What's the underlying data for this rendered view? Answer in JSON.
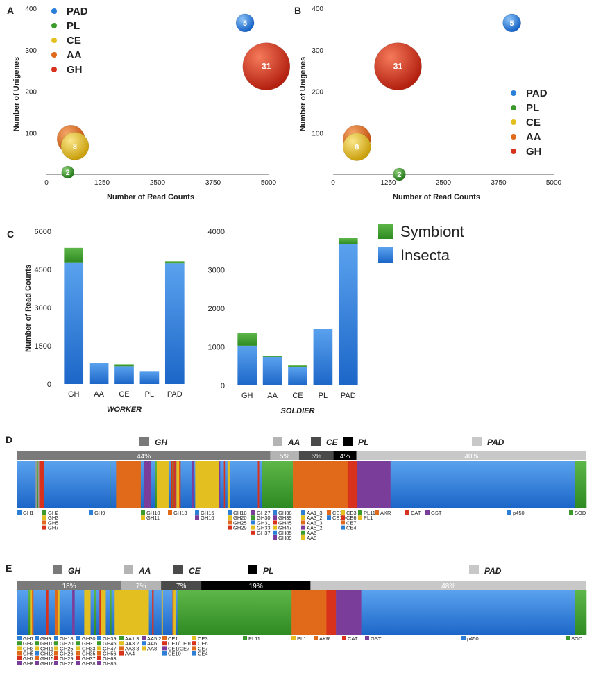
{
  "colors": {
    "PAD": "#2a7fd8",
    "PL": "#3c9a2c",
    "CE": "#e3c020",
    "AA": "#e06a1a",
    "GH": "#d9321c",
    "insecta": "#2d7fd6",
    "symbiont": "#3c9a2c",
    "gh_bar": "#7a7a7a",
    "aa_bar": "#b4b4b4",
    "ce_bar": "#4a4a4a",
    "pl_bar": "#000000",
    "pad_bar": "#c8c8c8",
    "purple": "#7a3e9a"
  },
  "chart_data": [
    {
      "panel": "A",
      "type": "scatter",
      "subtype": "bubble",
      "xlabel": "Number of Read Counts",
      "ylabel": "Number of Unigenes",
      "xlim": [
        0,
        5000
      ],
      "ylim": [
        0,
        400
      ],
      "xticks": [
        "0",
        "1250",
        "2500",
        "3750",
        "5000"
      ],
      "yticks": [
        "100",
        "200",
        "300",
        "400"
      ],
      "legend": [
        "PAD",
        "PL",
        "CE",
        "AA",
        "GH"
      ],
      "points": [
        {
          "family": "PAD",
          "x": 4470,
          "y": 365,
          "label": "5"
        },
        {
          "family": "GH",
          "x": 4950,
          "y": 260,
          "label": "31"
        },
        {
          "family": "AA",
          "x": 550,
          "y": 85,
          "label": "8"
        },
        {
          "family": "CE",
          "x": 640,
          "y": 68,
          "label": "8"
        },
        {
          "family": "PL",
          "x": 480,
          "y": 5,
          "label": "2"
        }
      ]
    },
    {
      "panel": "B",
      "type": "scatter",
      "subtype": "bubble",
      "xlabel": "Number of  Read Counts",
      "ylabel": "Number of Unigenes",
      "xlim": [
        0,
        5000
      ],
      "ylim": [
        0,
        400
      ],
      "xticks": [
        "0",
        "1250",
        "2500",
        "3750",
        "5000"
      ],
      "yticks": [
        "100",
        "200",
        "300",
        "400"
      ],
      "legend": [
        "PAD",
        "PL",
        "CE",
        "AA",
        "GH"
      ],
      "points": [
        {
          "family": "PAD",
          "x": 4050,
          "y": 365,
          "label": "5"
        },
        {
          "family": "GH",
          "x": 1470,
          "y": 260,
          "label": "31"
        },
        {
          "family": "AA",
          "x": 540,
          "y": 85,
          "label": "8"
        },
        {
          "family": "CE",
          "x": 540,
          "y": 66,
          "label": "8"
        },
        {
          "family": "PL",
          "x": 1500,
          "y": 0,
          "label": "2"
        }
      ]
    },
    {
      "panel": "C",
      "type": "bar",
      "stacked": true,
      "ylabel": "Number of Read Counts",
      "legend": [
        "Symbiont",
        "Insecta"
      ],
      "subcharts": [
        {
          "title": "WORKER",
          "categories": [
            "GH",
            "AA",
            "CE",
            "PL",
            "PAD"
          ],
          "ylim": [
            0,
            6000
          ],
          "yticks": [
            "0",
            "1500",
            "3000",
            "4500",
            "6000"
          ],
          "series": [
            {
              "name": "Insecta",
              "values": [
                4780,
                840,
                700,
                510,
                4740
              ]
            },
            {
              "name": "Symbiont",
              "values": [
                570,
                0,
                80,
                0,
                80
              ]
            }
          ]
        },
        {
          "title": "SOLDIER",
          "categories": [
            "GH",
            "AA",
            "CE",
            "PL",
            "PAD"
          ],
          "ylim": [
            0,
            4000
          ],
          "yticks": [
            "0",
            "1000",
            "2000",
            "3000",
            "4000"
          ],
          "series": [
            {
              "name": "Insecta",
              "values": [
                1030,
                740,
                470,
                1470,
                3660
              ]
            },
            {
              "name": "Symbiont",
              "values": [
                330,
                20,
                50,
                0,
                160
              ]
            }
          ]
        }
      ]
    },
    {
      "panel": "D",
      "type": "bar",
      "subtype": "composition-strip",
      "orientation": "horizontal",
      "groups": [
        {
          "name": "GH",
          "percent": "44%",
          "value": 44
        },
        {
          "name": "AA",
          "percent": "5%",
          "value": 5
        },
        {
          "name": "CE",
          "percent": "6%",
          "value": 6
        },
        {
          "name": "PL",
          "percent": "4%",
          "value": 4
        },
        {
          "name": "PAD",
          "percent": "40%",
          "value": 40
        }
      ]
    },
    {
      "panel": "E",
      "type": "bar",
      "subtype": "composition-strip",
      "orientation": "horizontal",
      "groups": [
        {
          "name": "GH",
          "percent": "18%",
          "value": 18
        },
        {
          "name": "AA",
          "percent": "7%",
          "value": 7
        },
        {
          "name": "CE",
          "percent": "7%",
          "value": 7
        },
        {
          "name": "PL",
          "percent": "19%",
          "value": 19
        },
        {
          "name": "PAD",
          "percent": "48%",
          "value": 48
        }
      ]
    }
  ],
  "panelD": {
    "segments": [
      [
        "insecta",
        6.5
      ],
      [
        "GH3",
        0.5
      ],
      [
        "symbiont",
        0.4
      ],
      [
        "GH5",
        0.4
      ],
      [
        "GH",
        1.6
      ],
      [
        "insecta",
        23.5
      ],
      [
        "symbiont",
        0.3
      ],
      [
        "insecta",
        2.0
      ],
      [
        "AA",
        8.8
      ],
      [
        "insecta",
        1.0
      ],
      [
        "purple",
        2.5
      ],
      [
        "insecta",
        1.6
      ],
      [
        "symbiont",
        0.6
      ],
      [
        "CE",
        4.2
      ],
      [
        "insecta",
        0.8
      ],
      [
        "GH",
        0.6
      ],
      [
        "symbiont",
        0.4
      ],
      [
        "GH",
        0.6
      ],
      [
        "purple",
        0.4
      ],
      [
        "CE",
        1.0
      ],
      [
        "GH",
        0.5
      ],
      [
        "insecta",
        4.0
      ],
      [
        "purple",
        0.6
      ],
      [
        "insecta",
        0.6
      ],
      [
        "CE",
        8.5
      ],
      [
        "purple",
        0.4
      ],
      [
        "insecta",
        1.3
      ],
      [
        "GH",
        0.4
      ],
      [
        "insecta",
        0.9
      ],
      [
        "CE",
        0.8
      ],
      [
        "insecta",
        10.0
      ],
      [
        "GH",
        0.5
      ],
      [
        "insecta",
        1.0
      ],
      [
        "symbiont",
        11.0
      ],
      [
        "AA",
        19.5
      ],
      [
        "GH",
        3.3
      ],
      [
        "purple",
        12.0
      ],
      [
        "insecta",
        65.8
      ],
      [
        "symbiont",
        4.0
      ]
    ],
    "labels": [
      {
        "col": 0,
        "items": [
          [
            "insecta",
            "GH1"
          ]
        ]
      },
      {
        "col": 1,
        "items": [
          [
            "symbiont",
            "GH2"
          ],
          [
            "CE",
            "GH3"
          ],
          [
            "AA",
            "GH5"
          ],
          [
            "GH",
            "GH7"
          ]
        ]
      },
      {
        "col": 2,
        "items": [
          [
            "insecta",
            "GH9"
          ]
        ]
      },
      {
        "col": 3,
        "items": [
          [
            "symbiont",
            "GH10"
          ],
          [
            "CE",
            "GH11"
          ]
        ]
      },
      {
        "col": 4,
        "items": [
          [
            "AA",
            "GH13"
          ]
        ]
      },
      {
        "col": 5,
        "items": [
          [
            "insecta",
            "GH15"
          ],
          [
            "purple",
            "GH16"
          ]
        ]
      },
      {
        "col": 6,
        "items": [
          [
            "insecta",
            "GH18"
          ],
          [
            "CE",
            "GH20"
          ],
          [
            "AA",
            "GH25"
          ],
          [
            "GH",
            "GH29"
          ]
        ]
      },
      {
        "col": 7,
        "items": [
          [
            "purple",
            "GH27"
          ],
          [
            "symbiont",
            "GH30"
          ],
          [
            "insecta",
            "GH31"
          ],
          [
            "CE",
            "GH33"
          ],
          [
            "GH",
            "GH37"
          ]
        ]
      },
      {
        "col": 8,
        "items": [
          [
            "insecta",
            "GH38"
          ],
          [
            "purple",
            "GH39"
          ],
          [
            "GH",
            "GH45"
          ],
          [
            "CE",
            "GH47"
          ],
          [
            "insecta",
            "GH85"
          ],
          [
            "purple",
            "GH89"
          ]
        ]
      },
      {
        "col": 9,
        "items": [
          [
            "insecta",
            "AA1_3"
          ],
          [
            "CE",
            "AA3_2"
          ],
          [
            "AA",
            "AA3_3"
          ],
          [
            "purple",
            "AA5_2"
          ],
          [
            "symbiont",
            "AA6"
          ],
          [
            "CE",
            "AA8"
          ]
        ]
      },
      {
        "col": 10,
        "items": [
          [
            "AA",
            "CE1"
          ],
          [
            "insecta",
            "CE10"
          ]
        ]
      },
      {
        "col": 11,
        "items": [
          [
            "CE",
            "CE3"
          ],
          [
            "GH",
            "CE6"
          ],
          [
            "AA",
            "CE7"
          ],
          [
            "insecta",
            "CE4"
          ]
        ]
      },
      {
        "col": 12,
        "items": [
          [
            "symbiont",
            "PL11"
          ],
          [
            "CE",
            "PL1"
          ]
        ]
      },
      {
        "col": 13,
        "items": [
          [
            "AA",
            "AKR"
          ]
        ]
      },
      {
        "col": 14,
        "items": [
          [
            "GH",
            "CAT"
          ]
        ]
      },
      {
        "col": 15,
        "items": [
          [
            "purple",
            "GST"
          ]
        ]
      },
      {
        "col": 16,
        "items": [
          [
            "insecta",
            "p450"
          ]
        ]
      },
      {
        "col": 17,
        "items": [
          [
            "symbiont",
            "SOD"
          ]
        ]
      }
    ]
  },
  "panelE": {
    "segments": [
      [
        "insecta",
        3.5
      ],
      [
        "symbiont",
        0.5
      ],
      [
        "CE",
        0.6
      ],
      [
        "AA",
        0.5
      ],
      [
        "insecta",
        4.0
      ],
      [
        "GH",
        0.7
      ],
      [
        "insecta",
        2.0
      ],
      [
        "AA",
        1.0
      ],
      [
        "CE",
        0.5
      ],
      [
        "insecta",
        4.0
      ],
      [
        "purple",
        0.8
      ],
      [
        "insecta",
        3.0
      ],
      [
        "CE",
        2.0
      ],
      [
        "insecta",
        1.2
      ],
      [
        "symbiont",
        0.6
      ],
      [
        "insecta",
        1.0
      ],
      [
        "GH",
        0.6
      ],
      [
        "CE",
        1.4
      ],
      [
        "insecta",
        1.4
      ],
      [
        "symbiont",
        0.4
      ],
      [
        "insecta",
        1.0
      ],
      [
        "CE",
        10.8
      ],
      [
        "insecta",
        1.0
      ],
      [
        "GH",
        0.5
      ],
      [
        "insecta",
        2.5
      ],
      [
        "CE",
        0.4
      ],
      [
        "insecta",
        3.0
      ],
      [
        "AA",
        0.4
      ],
      [
        "CE",
        0.6
      ],
      [
        "insecta",
        0.6
      ],
      [
        "symbiont",
        36.0
      ],
      [
        "AA",
        11.0
      ],
      [
        "GH",
        3.0
      ],
      [
        "purple",
        8.0
      ],
      [
        "insecta",
        67.5
      ],
      [
        "symbiont",
        3.5
      ]
    ],
    "labelGroups": [
      {
        "col": 0,
        "items": [
          [
            "insecta",
            "GH1"
          ],
          [
            "symbiont",
            "GH2"
          ],
          [
            "CE",
            "GH3"
          ],
          [
            "AA",
            "GH5"
          ],
          [
            "GH",
            "GH7"
          ],
          [
            "purple",
            "GH8"
          ]
        ]
      },
      {
        "col": 1,
        "items": [
          [
            "insecta",
            "GH9"
          ],
          [
            "symbiont",
            "GH10"
          ],
          [
            "CE",
            "GH11"
          ],
          [
            "insecta",
            "GH13"
          ],
          [
            "AA",
            "GH15"
          ],
          [
            "purple",
            "GH16"
          ]
        ]
      },
      {
        "col": 2,
        "items": [
          [
            "insecta",
            "GH18"
          ],
          [
            "symbiont",
            "GH20"
          ],
          [
            "CE",
            "GH25"
          ],
          [
            "AA",
            "GH26"
          ],
          [
            "GH",
            "GH29"
          ],
          [
            "purple",
            "GH27"
          ]
        ]
      },
      {
        "col": 3,
        "items": [
          [
            "insecta",
            "GH30"
          ],
          [
            "symbiont",
            "GH31"
          ],
          [
            "CE",
            "GH33"
          ],
          [
            "AA",
            "GH35"
          ],
          [
            "GH",
            "GH37"
          ],
          [
            "purple",
            "GH38"
          ]
        ]
      },
      {
        "col": 4,
        "items": [
          [
            "insecta",
            "GH39"
          ],
          [
            "symbiont",
            "GH45"
          ],
          [
            "CE",
            "GH47"
          ],
          [
            "AA",
            "GH56"
          ],
          [
            "GH",
            "GH63"
          ],
          [
            "purple",
            "GH85"
          ]
        ]
      },
      {
        "col": 5,
        "items": [
          [
            "symbiont",
            "AA1 3"
          ],
          [
            "CE",
            "AA3 2"
          ],
          [
            "AA",
            "AA3 3"
          ],
          [
            "GH",
            "AA4"
          ]
        ]
      },
      {
        "col": 6,
        "items": [
          [
            "purple",
            "AA5 2"
          ],
          [
            "insecta",
            "AA6"
          ],
          [
            "CE",
            "AA8"
          ]
        ]
      },
      {
        "col": 7,
        "items": [
          [
            "AA",
            "CE1"
          ],
          [
            "GH",
            "CE1/CE10"
          ],
          [
            "purple",
            "CE1/CE7"
          ],
          [
            "insecta",
            "CE10"
          ]
        ]
      },
      {
        "col": 8,
        "items": [
          [
            "CE",
            "CE3"
          ],
          [
            "GH",
            "CE6"
          ],
          [
            "AA",
            "CE7"
          ],
          [
            "insecta",
            "CE4"
          ]
        ]
      },
      {
        "col": 9,
        "items": [
          [
            "symbiont",
            "PL11"
          ]
        ]
      },
      {
        "col": 10,
        "items": [
          [
            "CE",
            "PL1"
          ]
        ]
      },
      {
        "col": 11,
        "items": [
          [
            "AA",
            "AKR"
          ]
        ]
      },
      {
        "col": 12,
        "items": [
          [
            "GH",
            "CAT"
          ]
        ]
      },
      {
        "col": 13,
        "items": [
          [
            "purple",
            "GST"
          ]
        ]
      },
      {
        "col": 14,
        "items": [
          [
            "insecta",
            "p450"
          ]
        ]
      },
      {
        "col": 15,
        "items": [
          [
            "symbiont",
            "SOD"
          ]
        ]
      }
    ]
  }
}
